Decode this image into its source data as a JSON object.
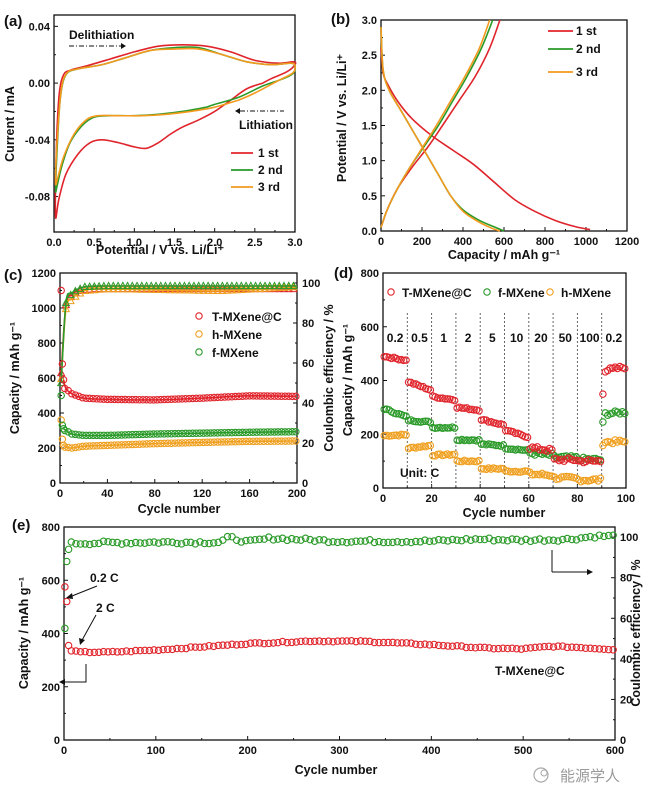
{
  "colors": {
    "red": "#e0242b",
    "green": "#2a9a28",
    "orange": "#f0a020",
    "orange_line": "#f39a1e",
    "black": "#111111"
  },
  "watermark": "能源学人",
  "chart_data": [
    {
      "panel": "(a)",
      "type": "line",
      "title": "",
      "xlabel": "Potential / V vs. Li/Li⁺",
      "ylabel": "Current / mA",
      "xlim": [
        0,
        3.0
      ],
      "ylim": [
        -0.105,
        0.048
      ],
      "xticks": [
        "0.0",
        "0.5",
        "1.0",
        "1.5",
        "2.0",
        "2.5",
        "3.0"
      ],
      "yticks": [
        "0.04",
        "0.00",
        "-0.04",
        "-0.08"
      ],
      "annotations": [
        {
          "text": "Delithiation",
          "direction": "right"
        },
        {
          "text": "Lithiation",
          "direction": "left"
        }
      ],
      "legend": {
        "position": "bottom-right",
        "entries": [
          "1 st",
          "2 nd",
          "3 rd"
        ]
      },
      "series": [
        {
          "name": "1 st",
          "color": "red",
          "x": [
            2.6,
            2.4,
            2.2,
            2.0,
            1.8,
            1.6,
            1.45,
            1.3,
            1.15,
            1.0,
            0.8,
            0.6,
            0.45,
            0.3,
            0.15,
            0.06,
            0.02,
            0.02,
            0.04,
            0.07,
            0.12,
            0.2,
            0.4,
            0.7,
            1.0,
            1.3,
            1.6,
            1.9,
            2.2,
            2.5,
            2.8,
            2.98,
            3.0,
            2.9,
            2.7,
            2.6
          ],
          "y": [
            0.0,
            -0.004,
            -0.012,
            -0.02,
            -0.026,
            -0.031,
            -0.036,
            -0.042,
            -0.046,
            -0.045,
            -0.042,
            -0.04,
            -0.042,
            -0.05,
            -0.064,
            -0.082,
            -0.095,
            -0.07,
            -0.03,
            -0.005,
            0.006,
            0.009,
            0.012,
            0.017,
            0.022,
            0.026,
            0.027,
            0.026,
            0.022,
            0.016,
            0.014,
            0.015,
            0.013,
            0.008,
            0.003,
            0.0
          ]
        },
        {
          "name": "2 nd",
          "color": "green",
          "x": [
            1.9,
            1.6,
            1.3,
            1.0,
            0.7,
            0.5,
            0.35,
            0.2,
            0.1,
            0.04,
            0.02,
            0.04,
            0.08,
            0.15,
            0.3,
            0.6,
            0.9,
            1.2,
            1.5,
            1.8,
            2.1,
            2.4,
            2.7,
            2.95,
            3.0,
            2.98,
            2.85,
            2.6,
            2.3,
            2.0,
            1.9
          ],
          "y": [
            -0.017,
            -0.02,
            -0.022,
            -0.023,
            -0.023,
            -0.024,
            -0.03,
            -0.042,
            -0.058,
            -0.072,
            -0.075,
            -0.045,
            -0.01,
            0.006,
            0.01,
            0.013,
            0.018,
            0.023,
            0.025,
            0.025,
            0.02,
            0.015,
            0.013,
            0.014,
            0.012,
            0.007,
            0.003,
            -0.002,
            -0.01,
            -0.015,
            -0.017
          ]
        },
        {
          "name": "3 rd",
          "color": "orange_line",
          "x": [
            2.3,
            2.0,
            1.7,
            1.4,
            1.1,
            0.8,
            0.55,
            0.4,
            0.25,
            0.12,
            0.05,
            0.02,
            0.04,
            0.09,
            0.16,
            0.3,
            0.6,
            0.9,
            1.2,
            1.5,
            1.8,
            2.1,
            2.4,
            2.7,
            2.95,
            3.0,
            2.97,
            2.8,
            2.5,
            2.3
          ],
          "y": [
            -0.012,
            -0.017,
            -0.02,
            -0.022,
            -0.023,
            -0.023,
            -0.023,
            -0.026,
            -0.036,
            -0.052,
            -0.066,
            -0.07,
            -0.04,
            -0.005,
            0.007,
            0.01,
            0.013,
            0.018,
            0.023,
            0.024,
            0.024,
            0.02,
            0.015,
            0.013,
            0.014,
            0.012,
            0.007,
            0.002,
            -0.007,
            -0.012
          ]
        }
      ]
    },
    {
      "panel": "(b)",
      "type": "line",
      "xlabel": "Capacity / mAh g⁻¹",
      "ylabel": "Potential / V vs. Li/Li⁺",
      "xlim": [
        0,
        1200
      ],
      "ylim": [
        0,
        3.0
      ],
      "xticks": [
        "0",
        "200",
        "400",
        "600",
        "800",
        "1000",
        "1200"
      ],
      "yticks": [
        "0.0",
        "0.5",
        "1.0",
        "1.5",
        "2.0",
        "2.5",
        "3.0"
      ],
      "legend": {
        "position": "top-right",
        "entries": [
          "1 st",
          "2 nd",
          "3 rd"
        ]
      },
      "series": [
        {
          "name": "1 st discharge",
          "color": "red",
          "x": [
            0,
            10,
            30,
            80,
            150,
            250,
            350,
            450,
            550,
            650,
            750,
            850,
            950,
            1020
          ],
          "y": [
            2.6,
            2.25,
            2.1,
            1.85,
            1.6,
            1.35,
            1.15,
            0.95,
            0.7,
            0.45,
            0.28,
            0.15,
            0.06,
            0.02
          ]
        },
        {
          "name": "1 st charge",
          "color": "red",
          "x": [
            0,
            30,
            80,
            150,
            230,
            300,
            380,
            460,
            530,
            580
          ],
          "y": [
            0.05,
            0.3,
            0.6,
            0.9,
            1.2,
            1.5,
            1.85,
            2.2,
            2.6,
            3.0
          ]
        },
        {
          "name": "2 nd discharge",
          "color": "green",
          "x": [
            0,
            10,
            40,
            100,
            160,
            220,
            280,
            340,
            400,
            480,
            560,
            600
          ],
          "y": [
            2.9,
            2.3,
            2.0,
            1.7,
            1.4,
            1.1,
            0.8,
            0.5,
            0.3,
            0.15,
            0.05,
            0.0
          ]
        },
        {
          "name": "2 nd charge",
          "color": "green",
          "x": [
            0,
            30,
            80,
            140,
            210,
            280,
            350,
            420,
            490,
            545
          ],
          "y": [
            0.05,
            0.3,
            0.6,
            0.9,
            1.2,
            1.5,
            1.85,
            2.2,
            2.6,
            3.0
          ]
        },
        {
          "name": "3 rd discharge",
          "color": "orange_line",
          "x": [
            0,
            10,
            40,
            100,
            160,
            220,
            280,
            340,
            400,
            470,
            540,
            580
          ],
          "y": [
            2.9,
            2.3,
            2.0,
            1.7,
            1.4,
            1.1,
            0.8,
            0.5,
            0.28,
            0.14,
            0.04,
            0.0
          ]
        },
        {
          "name": "3 rd charge",
          "color": "orange_line",
          "x": [
            0,
            30,
            80,
            140,
            205,
            270,
            340,
            410,
            480,
            530
          ],
          "y": [
            0.05,
            0.3,
            0.6,
            0.9,
            1.2,
            1.5,
            1.85,
            2.2,
            2.6,
            3.0
          ]
        }
      ]
    },
    {
      "panel": "(c)",
      "type": "scatter",
      "xlabel": "Cycle number",
      "ylabel": "Capacity / mAh g⁻¹",
      "ylabel_right": "Coulombic efficiency / %",
      "xlim": [
        0,
        200
      ],
      "ylim": [
        0,
        1200
      ],
      "ylim_right": [
        0,
        105
      ],
      "xticks": [
        "0",
        "40",
        "80",
        "120",
        "160",
        "200"
      ],
      "yticks": [
        "0",
        "200",
        "400",
        "600",
        "800",
        "1000",
        "1200"
      ],
      "yticks_right": [
        "0",
        "20",
        "40",
        "60",
        "80",
        "100"
      ],
      "legend": {
        "position": "center-right",
        "entries": [
          "T-MXene@C",
          "h-MXene",
          "f-MXene"
        ]
      },
      "capacity_series": [
        {
          "name": "T-MXene@C",
          "color": "red",
          "start": [
            1100,
            680,
            590
          ],
          "plateau_points": [
            [
              5,
              540
            ],
            [
              10,
              510
            ],
            [
              20,
              485
            ],
            [
              40,
              478
            ],
            [
              80,
              475
            ],
            [
              120,
              485
            ],
            [
              160,
              498
            ],
            [
              200,
              495
            ]
          ]
        },
        {
          "name": "h-MXene",
          "color": "orange",
          "start": [
            360,
            250,
            215
          ],
          "plateau_points": [
            [
              5,
              205
            ],
            [
              10,
              200
            ],
            [
              20,
              210
            ],
            [
              40,
              215
            ],
            [
              80,
              225
            ],
            [
              120,
              232
            ],
            [
              160,
              238
            ],
            [
              200,
              240
            ]
          ]
        },
        {
          "name": "f-MXene",
          "color": "green",
          "start": [
            500,
            330,
            310
          ],
          "plateau_points": [
            [
              5,
              300
            ],
            [
              10,
              280
            ],
            [
              20,
              272
            ],
            [
              40,
              272
            ],
            [
              80,
              280
            ],
            [
              120,
              285
            ],
            [
              160,
              290
            ],
            [
              200,
              293
            ]
          ]
        }
      ],
      "ce_series": [
        {
          "name": "T-MXene@C CE",
          "color": "red",
          "points": [
            [
              1,
              55
            ],
            [
              5,
              89
            ],
            [
              10,
              94
            ],
            [
              15,
              96
            ],
            [
              30,
              97
            ],
            [
              60,
              97
            ],
            [
              100,
              97
            ],
            [
              150,
              97
            ],
            [
              200,
              97
            ]
          ]
        },
        {
          "name": "h-MXene CE",
          "color": "orange",
          "points": [
            [
              1,
              52
            ],
            [
              5,
              87
            ],
            [
              10,
              92
            ],
            [
              20,
              96
            ],
            [
              40,
              97
            ],
            [
              135,
              96
            ],
            [
              200,
              98
            ]
          ]
        },
        {
          "name": "f-MXene CE",
          "color": "green",
          "points": [
            [
              1,
              50
            ],
            [
              5,
              90
            ],
            [
              10,
              95
            ],
            [
              20,
              98
            ],
            [
              40,
              98.5
            ],
            [
              100,
              98.5
            ],
            [
              200,
              98.5
            ]
          ]
        }
      ]
    },
    {
      "panel": "(d)",
      "type": "scatter",
      "xlabel": "Cycle number",
      "ylabel": "Capacity / mAh g⁻¹",
      "xlim": [
        0,
        100
      ],
      "ylim": [
        0,
        800
      ],
      "xticks": [
        "0",
        "20",
        "40",
        "60",
        "80",
        "100"
      ],
      "yticks": [
        "0",
        "200",
        "400",
        "600",
        "800"
      ],
      "rate_labels": [
        "0.2",
        "0.5",
        "1",
        "2",
        "5",
        "10",
        "20",
        "50",
        "100",
        "0.2"
      ],
      "unit_label": "Unit: C",
      "legend": {
        "position": "top",
        "entries": [
          "T-MXene@C",
          "f-MXene",
          "h-MXene"
        ]
      },
      "segments": [
        {
          "rate": "0.2",
          "T-MXene@C": [
            490,
            475
          ],
          "f-MXene": [
            295,
            265
          ],
          "h-MXene": [
            195,
            198
          ]
        },
        {
          "rate": "0.5",
          "T-MXene@C": [
            395,
            365
          ],
          "f-MXene": [
            252,
            245
          ],
          "h-MXene": [
            148,
            158
          ]
        },
        {
          "rate": "1",
          "T-MXene@C": [
            340,
            328
          ],
          "f-MXene": [
            225,
            225
          ],
          "h-MXene": [
            122,
            125
          ]
        },
        {
          "rate": "2",
          "T-MXene@C": [
            300,
            290
          ],
          "f-MXene": [
            180,
            178
          ],
          "h-MXene": [
            100,
            100
          ]
        },
        {
          "rate": "5",
          "T-MXene@C": [
            255,
            235
          ],
          "f-MXene": [
            163,
            158
          ],
          "h-MXene": [
            72,
            72
          ]
        },
        {
          "rate": "10",
          "T-MXene@C": [
            215,
            190
          ],
          "f-MXene": [
            148,
            140
          ],
          "h-MXene": [
            62,
            62
          ]
        },
        {
          "rate": "20",
          "T-MXene@C": [
            150,
            140
          ],
          "f-MXene": [
            130,
            122
          ],
          "h-MXene": [
            52,
            48
          ]
        },
        {
          "rate": "50",
          "T-MXene@C": [
            105,
            105
          ],
          "f-MXene": [
            115,
            112
          ],
          "h-MXene": [
            38,
            35
          ]
        },
        {
          "rate": "100",
          "T-MXene@C": [
            100,
            100
          ],
          "f-MXene": [
            108,
            105
          ],
          "h-MXene": [
            30,
            30
          ]
        },
        {
          "rate": "0.2",
          "T-MXene@C": [
            355,
            450
          ],
          "f-MXene": [
            240,
            282
          ],
          "h-MXene": [
            165,
            172
          ]
        }
      ]
    },
    {
      "panel": "(e)",
      "type": "scatter",
      "xlabel": "Cycle number",
      "ylabel": "Capacity / mAh g⁻¹",
      "ylabel_right": "Coulombic efficiency / %",
      "xlim": [
        0,
        600
      ],
      "ylim": [
        0,
        800
      ],
      "ylim_right": [
        0,
        105
      ],
      "xticks": [
        "0",
        "100",
        "200",
        "300",
        "400",
        "500",
        "600"
      ],
      "yticks": [
        "0",
        "200",
        "400",
        "600",
        "800"
      ],
      "yticks_right": [
        "0",
        "20",
        "40",
        "60",
        "80",
        "100"
      ],
      "annotations": [
        "0.2 C",
        "2 C",
        "T-MXene@C"
      ],
      "capacity_series": {
        "name": "T-MXene@C",
        "color": "red",
        "initial": [
          575,
          520,
          355
        ],
        "points": [
          [
            5,
            340
          ],
          [
            15,
            330
          ],
          [
            50,
            330
          ],
          [
            100,
            338
          ],
          [
            150,
            350
          ],
          [
            200,
            362
          ],
          [
            270,
            372
          ],
          [
            330,
            370
          ],
          [
            400,
            358
          ],
          [
            460,
            345
          ],
          [
            500,
            342
          ],
          [
            530,
            352
          ],
          [
            560,
            348
          ],
          [
            600,
            340
          ]
        ]
      },
      "ce_series": {
        "name": "CE",
        "color": "green",
        "initial": [
          55,
          88,
          94
        ],
        "points": [
          [
            10,
            97
          ],
          [
            100,
            97.5
          ],
          [
            170,
            97.5
          ],
          [
            180,
            100
          ],
          [
            200,
            97.5
          ],
          [
            225,
            99.5
          ],
          [
            300,
            98
          ],
          [
            400,
            98
          ],
          [
            450,
            99
          ],
          [
            500,
            98.5
          ],
          [
            550,
            99
          ],
          [
            580,
            100.5
          ],
          [
            600,
            100.5
          ]
        ]
      }
    }
  ]
}
